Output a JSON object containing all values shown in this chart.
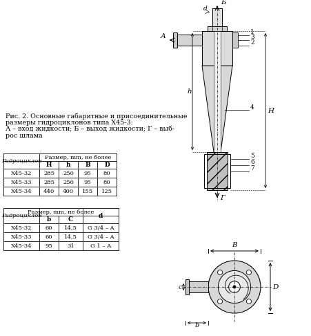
{
  "caption_line1": "Рис. 2. Основные габаритные и присоединительные",
  "caption_line2": "размеры гидроциклонов типа Х45-3:",
  "caption_line3": "А – вход жидкости; Б – выход жидкости; Г – выб-",
  "caption_line4": "рос шлама",
  "table1_header1": "Гидроциклон",
  "table1_header2": "Размер, mm, не более",
  "table1_cols": [
    "H",
    "h",
    "B",
    "D"
  ],
  "table1_rows": [
    [
      "X45-32",
      "285",
      "250",
      "95",
      "80"
    ],
    [
      "X45-33",
      "285",
      "250",
      "95",
      "80"
    ],
    [
      "X45-34",
      "440",
      "400",
      "155",
      "125"
    ]
  ],
  "table2_header1": "Гидроциклон",
  "table2_header2": "Размер, mm, не более",
  "table2_cols": [
    "b",
    "C"
  ],
  "table2_col_d": "d",
  "table2_rows": [
    [
      "X45-32",
      "60",
      "14,5",
      "G 3/4 – A"
    ],
    [
      "X45-33",
      "60",
      "14,5",
      "G 3/4 – A"
    ],
    [
      "X45-34",
      "95",
      "31",
      "G 1 – A"
    ]
  ],
  "line_color": "#000000"
}
